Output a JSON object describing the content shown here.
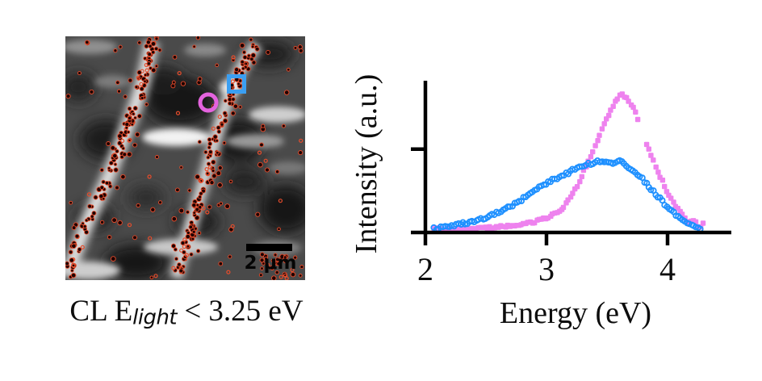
{
  "panel_left": {
    "description": "cathodoluminescence map with defect dots",
    "scale_bar_label": "2 μm",
    "caption": {
      "prefix": "CL E",
      "subscript": "light",
      "suffix": " < 3.25 eV"
    },
    "markers": {
      "blue_square": {
        "x": 212,
        "y": 59,
        "size": 19,
        "color": "#3b9ff2"
      },
      "magenta_circle": {
        "x": 177,
        "y": 82,
        "r": 10,
        "color": "#e463de"
      }
    },
    "dots": {
      "fill": "#1e0303",
      "stroke": "#e74c2b",
      "count_band_a": 150,
      "count_band_b": 155,
      "count_scatter": 100,
      "count_cluster_br": 28
    }
  },
  "chart_data": {
    "type": "scatter",
    "title": "",
    "xlabel": "Energy (eV)",
    "ylabel": "Intensity (a.u.)",
    "xlim": [
      1.88,
      4.54
    ],
    "ylim": [
      0,
      1.11
    ],
    "xticks": [
      "2",
      "3",
      "4"
    ],
    "xtick_values": [
      2,
      3,
      4
    ],
    "yticks_relative": [
      0.6
    ],
    "grid": false,
    "legend": "none",
    "series": [
      {
        "name": "magenta_squares",
        "marker": "square-filled",
        "color": "#ee82ee",
        "gap_x": [
          3.76,
          3.815
        ],
        "x": [
          2.07,
          2.3,
          2.5,
          2.7,
          2.85,
          3.0,
          3.1,
          3.2,
          3.3,
          3.4,
          3.5,
          3.57,
          3.62,
          3.68,
          3.73,
          3.78,
          3.84,
          3.9,
          4.0,
          4.1,
          4.18,
          4.25,
          4.3
        ],
        "y": [
          0.006,
          0.008,
          0.015,
          0.035,
          0.05,
          0.09,
          0.14,
          0.24,
          0.42,
          0.62,
          0.83,
          0.95,
          1.0,
          0.96,
          0.88,
          0.75,
          0.61,
          0.47,
          0.28,
          0.14,
          0.07,
          0.045,
          0.03
        ]
      },
      {
        "name": "blue_circles",
        "marker": "circle-open",
        "color": "#1e90ff",
        "x": [
          2.07,
          2.2,
          2.35,
          2.5,
          2.62,
          2.75,
          2.85,
          2.95,
          3.05,
          3.15,
          3.25,
          3.35,
          3.45,
          3.55,
          3.62,
          3.7,
          3.78,
          3.85,
          3.92,
          4.0,
          4.08,
          4.16,
          4.22,
          4.28
        ],
        "y": [
          0.01,
          0.03,
          0.055,
          0.09,
          0.14,
          0.2,
          0.26,
          0.32,
          0.37,
          0.41,
          0.46,
          0.49,
          0.51,
          0.5,
          0.51,
          0.45,
          0.39,
          0.32,
          0.25,
          0.17,
          0.1,
          0.05,
          0.025,
          0.012
        ]
      }
    ]
  }
}
